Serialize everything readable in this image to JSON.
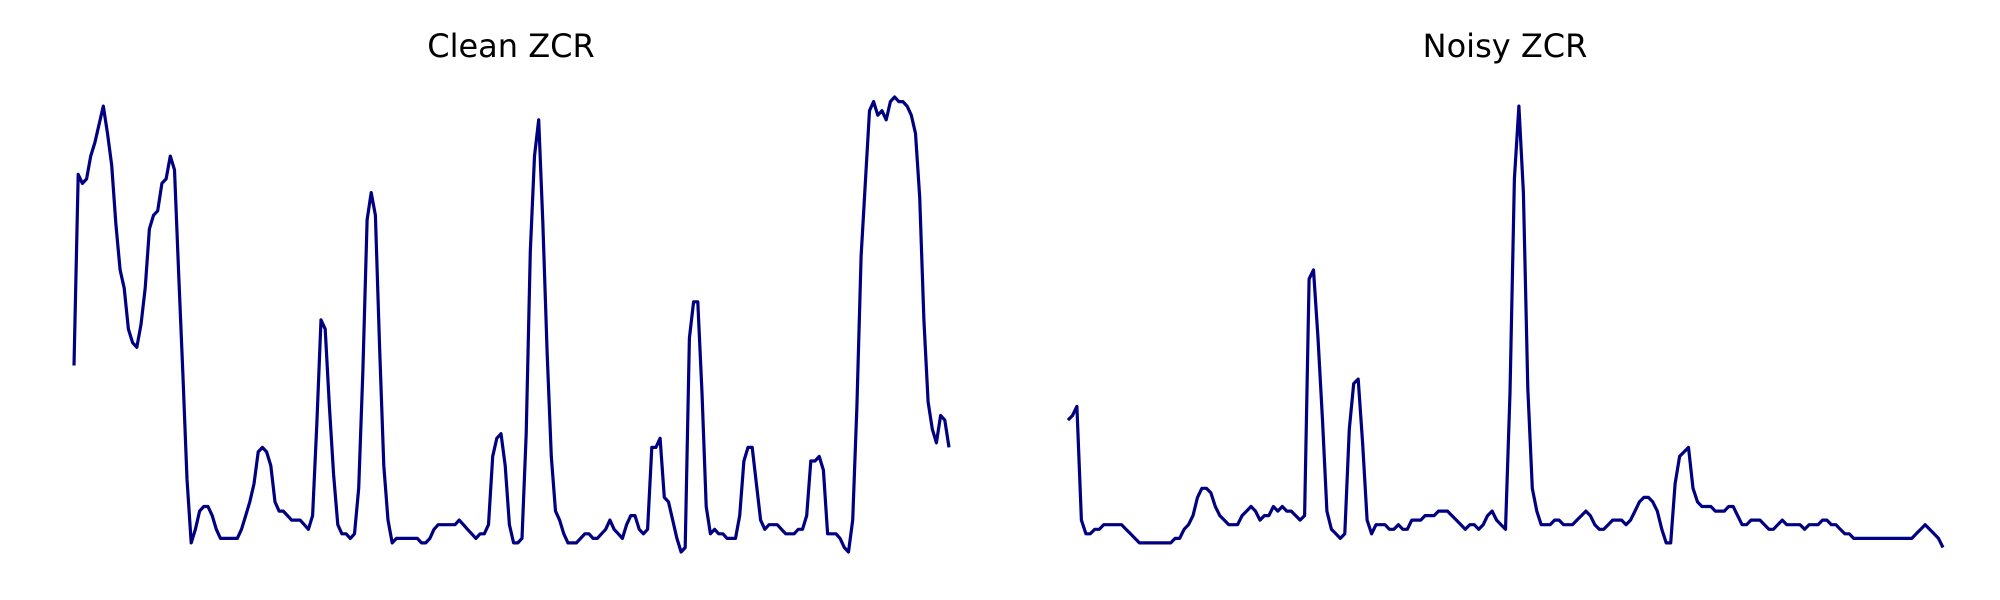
{
  "chart_data": [
    {
      "type": "line",
      "title": "Clean ZCR",
      "xlabel": "",
      "ylabel": "",
      "axes_visible": false,
      "grid": false,
      "xlim": [
        0,
        175
      ],
      "ylim": [
        0,
        1
      ],
      "series": [
        {
          "color": "#000080",
          "values": [
            0.41,
            0.83,
            0.81,
            0.82,
            0.87,
            0.9,
            0.94,
            0.98,
            0.92,
            0.85,
            0.72,
            0.62,
            0.58,
            0.49,
            0.46,
            0.45,
            0.5,
            0.58,
            0.71,
            0.74,
            0.75,
            0.81,
            0.82,
            0.87,
            0.84,
            0.61,
            0.39,
            0.16,
            0.02,
            0.05,
            0.09,
            0.1,
            0.1,
            0.08,
            0.05,
            0.03,
            0.03,
            0.03,
            0.03,
            0.03,
            0.05,
            0.08,
            0.11,
            0.15,
            0.22,
            0.23,
            0.22,
            0.19,
            0.11,
            0.09,
            0.09,
            0.08,
            0.07,
            0.07,
            0.07,
            0.06,
            0.05,
            0.08,
            0.28,
            0.51,
            0.49,
            0.32,
            0.17,
            0.06,
            0.04,
            0.04,
            0.03,
            0.04,
            0.14,
            0.4,
            0.73,
            0.79,
            0.74,
            0.45,
            0.19,
            0.07,
            0.02,
            0.03,
            0.03,
            0.03,
            0.03,
            0.03,
            0.03,
            0.02,
            0.02,
            0.03,
            0.05,
            0.06,
            0.06,
            0.06,
            0.06,
            0.06,
            0.07,
            0.06,
            0.05,
            0.04,
            0.03,
            0.04,
            0.04,
            0.06,
            0.21,
            0.25,
            0.26,
            0.19,
            0.06,
            0.02,
            0.02,
            0.03,
            0.26,
            0.66,
            0.87,
            0.95,
            0.72,
            0.44,
            0.21,
            0.09,
            0.07,
            0.04,
            0.02,
            0.02,
            0.02,
            0.03,
            0.04,
            0.04,
            0.03,
            0.03,
            0.04,
            0.05,
            0.07,
            0.05,
            0.04,
            0.03,
            0.06,
            0.08,
            0.08,
            0.05,
            0.04,
            0.05,
            0.23,
            0.23,
            0.25,
            0.12,
            0.11,
            0.07,
            0.03,
            0.0,
            0.01,
            0.47,
            0.55,
            0.55,
            0.35,
            0.1,
            0.04,
            0.05,
            0.04,
            0.04,
            0.03,
            0.03,
            0.03,
            0.08,
            0.2,
            0.23,
            0.23,
            0.15,
            0.07,
            0.05,
            0.06,
            0.06,
            0.06,
            0.05,
            0.04,
            0.04,
            0.04,
            0.05,
            0.05,
            0.08,
            0.2,
            0.2,
            0.21,
            0.18,
            0.04,
            0.04,
            0.04,
            0.03,
            0.01,
            0.0,
            0.07,
            0.32,
            0.65,
            0.81,
            0.97,
            0.99,
            0.96,
            0.97,
            0.95,
            0.99,
            1.0,
            0.99,
            0.99,
            0.98,
            0.96,
            0.92,
            0.78,
            0.51,
            0.33,
            0.27,
            0.24,
            0.3,
            0.29,
            0.23
          ]
        }
      ]
    },
    {
      "type": "line",
      "title": "Noisy ZCR",
      "xlabel": "",
      "ylabel": "",
      "axes_visible": false,
      "grid": false,
      "xlim": [
        0,
        175
      ],
      "ylim": [
        0,
        1
      ],
      "series": [
        {
          "color": "#000080",
          "values": [
            0.29,
            0.3,
            0.32,
            0.07,
            0.04,
            0.04,
            0.05,
            0.05,
            0.06,
            0.06,
            0.06,
            0.06,
            0.06,
            0.05,
            0.04,
            0.03,
            0.02,
            0.02,
            0.02,
            0.02,
            0.02,
            0.02,
            0.02,
            0.02,
            0.03,
            0.03,
            0.05,
            0.06,
            0.08,
            0.12,
            0.14,
            0.14,
            0.13,
            0.1,
            0.08,
            0.07,
            0.06,
            0.06,
            0.06,
            0.08,
            0.09,
            0.1,
            0.09,
            0.07,
            0.08,
            0.08,
            0.1,
            0.09,
            0.1,
            0.09,
            0.09,
            0.08,
            0.07,
            0.08,
            0.6,
            0.62,
            0.47,
            0.29,
            0.09,
            0.05,
            0.04,
            0.03,
            0.04,
            0.27,
            0.37,
            0.38,
            0.24,
            0.07,
            0.04,
            0.06,
            0.06,
            0.06,
            0.05,
            0.05,
            0.06,
            0.05,
            0.05,
            0.07,
            0.07,
            0.07,
            0.08,
            0.08,
            0.08,
            0.09,
            0.09,
            0.09,
            0.08,
            0.07,
            0.06,
            0.05,
            0.06,
            0.06,
            0.05,
            0.06,
            0.08,
            0.09,
            0.07,
            0.06,
            0.05,
            0.35,
            0.82,
            0.98,
            0.79,
            0.36,
            0.14,
            0.09,
            0.06,
            0.06,
            0.06,
            0.07,
            0.07,
            0.06,
            0.06,
            0.06,
            0.07,
            0.08,
            0.09,
            0.08,
            0.06,
            0.05,
            0.05,
            0.06,
            0.07,
            0.07,
            0.07,
            0.06,
            0.07,
            0.09,
            0.11,
            0.12,
            0.12,
            0.11,
            0.09,
            0.05,
            0.02,
            0.02,
            0.15,
            0.21,
            0.22,
            0.23,
            0.14,
            0.11,
            0.1,
            0.1,
            0.1,
            0.09,
            0.09,
            0.09,
            0.1,
            0.1,
            0.08,
            0.06,
            0.06,
            0.07,
            0.07,
            0.07,
            0.06,
            0.05,
            0.05,
            0.06,
            0.07,
            0.06,
            0.06,
            0.06,
            0.06,
            0.05,
            0.06,
            0.06,
            0.06,
            0.07,
            0.07,
            0.06,
            0.06,
            0.05,
            0.04,
            0.04,
            0.03,
            0.03,
            0.03,
            0.03,
            0.03,
            0.03,
            0.03,
            0.03,
            0.03,
            0.03,
            0.03,
            0.03,
            0.03,
            0.03,
            0.04,
            0.05,
            0.06,
            0.05,
            0.04,
            0.03,
            0.01
          ]
        }
      ]
    }
  ]
}
